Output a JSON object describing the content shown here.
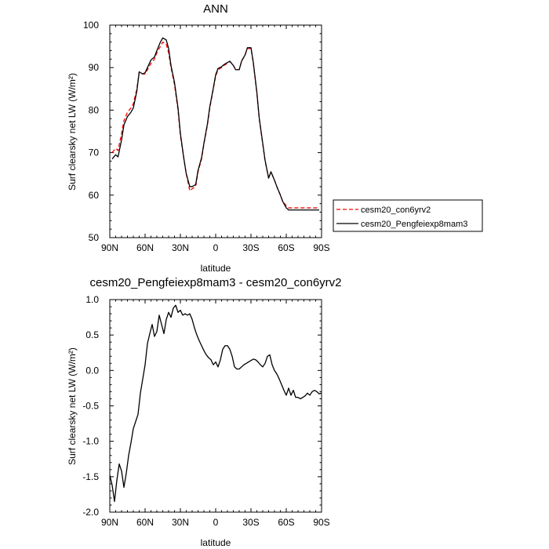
{
  "chart_data": [
    {
      "type": "line",
      "title": "ANN",
      "xlabel": "latitude",
      "ylabel": "Surf clearsky net LW (W/m²)",
      "xlim": [
        90,
        -90
      ],
      "ylim": [
        50,
        100
      ],
      "x_ticks": [
        90,
        60,
        30,
        0,
        -30,
        -60,
        -90
      ],
      "x_tick_labels": [
        "90N",
        "60N",
        "30N",
        "0",
        "30S",
        "60S",
        "90S"
      ],
      "y_ticks": [
        50,
        60,
        70,
        80,
        90,
        100
      ],
      "y_tick_labels": [
        "50",
        "60",
        "70",
        "80",
        "90",
        "100"
      ],
      "x": [
        88,
        85,
        83,
        80,
        78,
        75,
        72,
        70,
        67,
        65,
        62,
        60,
        58,
        55,
        52,
        50,
        47,
        45,
        42,
        40,
        38,
        35,
        32,
        30,
        27,
        25,
        22,
        20,
        17,
        15,
        12,
        10,
        7,
        5,
        2,
        0,
        -2,
        -5,
        -7,
        -10,
        -12,
        -15,
        -17,
        -20,
        -22,
        -25,
        -27,
        -30,
        -32,
        -35,
        -37,
        -40,
        -42,
        -45,
        -47,
        -50,
        -52,
        -55,
        -57,
        -60,
        -62,
        -65,
        -67,
        -70,
        -72,
        -75,
        -77,
        -80,
        -82,
        -85,
        -88
      ],
      "series": [
        {
          "name": "cesm20_con6yrv2",
          "color": "#ff0000",
          "dash": "dashed",
          "values": [
            70.0,
            71.0,
            70.5,
            74.5,
            77.5,
            79.5,
            80.5,
            81.5,
            85.0,
            89.0,
            88.5,
            88.5,
            89.5,
            91.0,
            92.0,
            93.5,
            95.0,
            96.0,
            95.5,
            93.5,
            90.0,
            86.0,
            80.0,
            74.0,
            68.5,
            65.0,
            61.0,
            61.5,
            62.0,
            65.5,
            68.5,
            72.0,
            76.5,
            80.5,
            85.0,
            88.0,
            89.5,
            90.0,
            90.5,
            91.0,
            91.5,
            90.5,
            89.5,
            89.5,
            91.5,
            93.0,
            94.5,
            94.5,
            91.0,
            84.0,
            78.0,
            72.0,
            68.0,
            64.0,
            65.5,
            63.5,
            62.0,
            60.0,
            58.5,
            57.5,
            57.0,
            57.0,
            57.0,
            57.0,
            57.0,
            57.0,
            57.0,
            57.0,
            57.0,
            57.0,
            57.0
          ]
        },
        {
          "name": "cesm20_Pengfeiexp8mam3",
          "color": "#000000",
          "dash": "solid",
          "values": [
            68.5,
            69.5,
            69.0,
            73.0,
            76.5,
            78.5,
            79.5,
            80.5,
            84.5,
            89.0,
            88.5,
            88.8,
            90.0,
            91.8,
            92.5,
            94.0,
            96.0,
            97.0,
            96.5,
            94.5,
            90.5,
            86.5,
            80.5,
            74.5,
            68.5,
            65.0,
            62.0,
            62.0,
            62.5,
            65.8,
            68.8,
            72.2,
            76.8,
            80.8,
            85.2,
            88.3,
            89.8,
            90.2,
            90.7,
            91.2,
            91.5,
            90.5,
            89.5,
            89.5,
            91.5,
            93.0,
            94.7,
            94.7,
            91.2,
            84.2,
            78.2,
            72.2,
            68.2,
            64.0,
            65.5,
            63.5,
            62.0,
            60.0,
            58.5,
            57.0,
            56.5,
            56.5,
            56.5,
            56.5,
            56.5,
            56.5,
            56.5,
            56.5,
            56.5,
            56.5,
            56.5
          ]
        }
      ]
    },
    {
      "type": "line",
      "title": "cesm20_Pengfeiexp8mam3 - cesm20_con6yrv2",
      "xlabel": "latitude",
      "ylabel": "Surf clearsky net LW (W/m²)",
      "xlim": [
        90,
        -90
      ],
      "ylim": [
        -2.0,
        1.0
      ],
      "x_ticks": [
        90,
        60,
        30,
        0,
        -30,
        -60,
        -90
      ],
      "x_tick_labels": [
        "90N",
        "60N",
        "30N",
        "0",
        "30S",
        "60S",
        "90S"
      ],
      "y_ticks": [
        -2.0,
        -1.5,
        -1.0,
        -0.5,
        0.0,
        0.5,
        1.0
      ],
      "y_tick_labels": [
        "-2.0",
        "-1.5",
        "-1.0",
        "-0.5",
        "0.0",
        "0.5",
        "1.0"
      ],
      "x": [
        90,
        88,
        86,
        84,
        82,
        80,
        78,
        76,
        74,
        72,
        70,
        68,
        66,
        64,
        62,
        60,
        58,
        56,
        54,
        52,
        50,
        48,
        46,
        44,
        42,
        40,
        38,
        36,
        34,
        32,
        30,
        28,
        26,
        24,
        22,
        20,
        18,
        16,
        14,
        12,
        10,
        8,
        6,
        4,
        2,
        0,
        -2,
        -4,
        -6,
        -8,
        -10,
        -12,
        -14,
        -16,
        -18,
        -20,
        -22,
        -24,
        -26,
        -28,
        -30,
        -32,
        -34,
        -36,
        -38,
        -40,
        -42,
        -44,
        -46,
        -48,
        -50,
        -52,
        -54,
        -56,
        -58,
        -60,
        -62,
        -64,
        -66,
        -68,
        -70,
        -72,
        -74,
        -76,
        -78,
        -80,
        -82,
        -84,
        -86,
        -88,
        -90
      ],
      "series": [
        {
          "name": "",
          "color": "#000000",
          "dash": "solid",
          "values": [
            -1.48,
            -1.62,
            -1.85,
            -1.55,
            -1.32,
            -1.42,
            -1.65,
            -1.45,
            -1.2,
            -1.02,
            -0.82,
            -0.72,
            -0.62,
            -0.32,
            -0.12,
            0.08,
            0.38,
            0.52,
            0.65,
            0.48,
            0.55,
            0.78,
            0.65,
            0.52,
            0.72,
            0.82,
            0.75,
            0.88,
            0.92,
            0.82,
            0.85,
            0.78,
            0.8,
            0.78,
            0.8,
            0.72,
            0.6,
            0.5,
            0.42,
            0.35,
            0.28,
            0.22,
            0.18,
            0.15,
            0.08,
            0.12,
            0.05,
            0.15,
            0.3,
            0.35,
            0.35,
            0.3,
            0.2,
            0.05,
            0.02,
            0.02,
            0.05,
            0.08,
            0.1,
            0.12,
            0.14,
            0.16,
            0.15,
            0.12,
            0.08,
            0.05,
            0.1,
            0.2,
            0.22,
            0.08,
            0.0,
            -0.05,
            -0.12,
            -0.2,
            -0.28,
            -0.35,
            -0.25,
            -0.35,
            -0.28,
            -0.38,
            -0.38,
            -0.4,
            -0.38,
            -0.36,
            -0.32,
            -0.35,
            -0.3,
            -0.28,
            -0.3,
            -0.33,
            -0.32
          ]
        }
      ]
    }
  ]
}
